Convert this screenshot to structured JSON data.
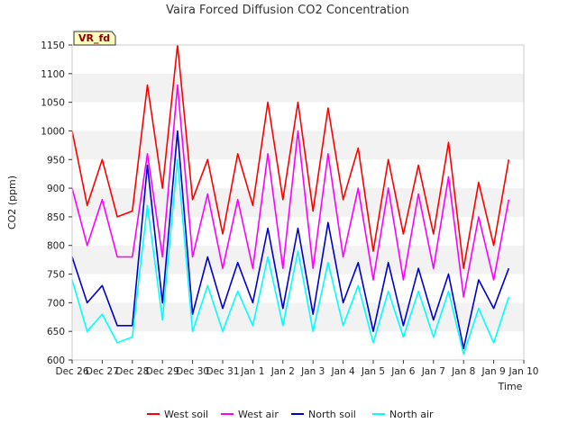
{
  "chart_data": {
    "type": "line",
    "title": "Vaira Forced Diffusion CO2 Concentration",
    "xlabel": "Time",
    "ylabel": "CO2 (ppm)",
    "ylim": [
      600,
      1150
    ],
    "xlim": [
      0,
      15
    ],
    "yticks": [
      600,
      650,
      700,
      750,
      800,
      850,
      900,
      950,
      1000,
      1050,
      1100,
      1150
    ],
    "x_tick_labels": [
      "Dec 26",
      "Dec 27",
      "Dec 28",
      "Dec 29",
      "Dec 30",
      "Dec 31",
      "Jan 1",
      "Jan 2",
      "Jan 3",
      "Jan 4",
      "Jan 5",
      "Jan 6",
      "Jan 7",
      "Jan 8",
      "Jan 9",
      "Jan 10"
    ],
    "grid": "horizontal alternating bands",
    "legend_position": "bottom",
    "site_label": "VR_fd",
    "x_days": [
      0.0,
      0.5,
      1.0,
      1.5,
      2.0,
      2.5,
      3.0,
      3.5,
      4.0,
      4.5,
      5.0,
      5.5,
      6.0,
      6.5,
      7.0,
      7.5,
      8.0,
      8.5,
      9.0,
      9.5,
      10.0,
      10.5,
      11.0,
      11.5,
      12.0,
      12.5,
      13.0,
      13.5,
      14.0,
      14.5
    ],
    "series": [
      {
        "name": "West soil",
        "color": "#ff0000",
        "values": [
          1000,
          870,
          950,
          850,
          860,
          1080,
          900,
          1150,
          880,
          950,
          820,
          960,
          870,
          1050,
          880,
          1050,
          860,
          1040,
          880,
          970,
          790,
          950,
          820,
          940,
          820,
          980,
          760,
          910,
          800,
          950
        ]
      },
      {
        "name": "West air",
        "color": "#ff00ff",
        "values": [
          900,
          800,
          880,
          780,
          780,
          960,
          780,
          1080,
          780,
          890,
          760,
          880,
          760,
          960,
          760,
          1000,
          760,
          960,
          780,
          900,
          740,
          900,
          740,
          890,
          760,
          920,
          710,
          850,
          740,
          880
        ]
      },
      {
        "name": "North soil",
        "color": "#0000cc",
        "values": [
          780,
          700,
          730,
          660,
          660,
          940,
          700,
          1000,
          680,
          780,
          690,
          770,
          700,
          830,
          690,
          830,
          680,
          840,
          700,
          770,
          650,
          770,
          660,
          760,
          670,
          750,
          620,
          740,
          690,
          760
        ]
      },
      {
        "name": "North air",
        "color": "#00ffff",
        "values": [
          740,
          650,
          680,
          630,
          640,
          870,
          670,
          950,
          650,
          730,
          650,
          720,
          660,
          780,
          660,
          790,
          650,
          770,
          660,
          730,
          630,
          720,
          640,
          720,
          640,
          720,
          610,
          690,
          630,
          710
        ]
      }
    ]
  }
}
